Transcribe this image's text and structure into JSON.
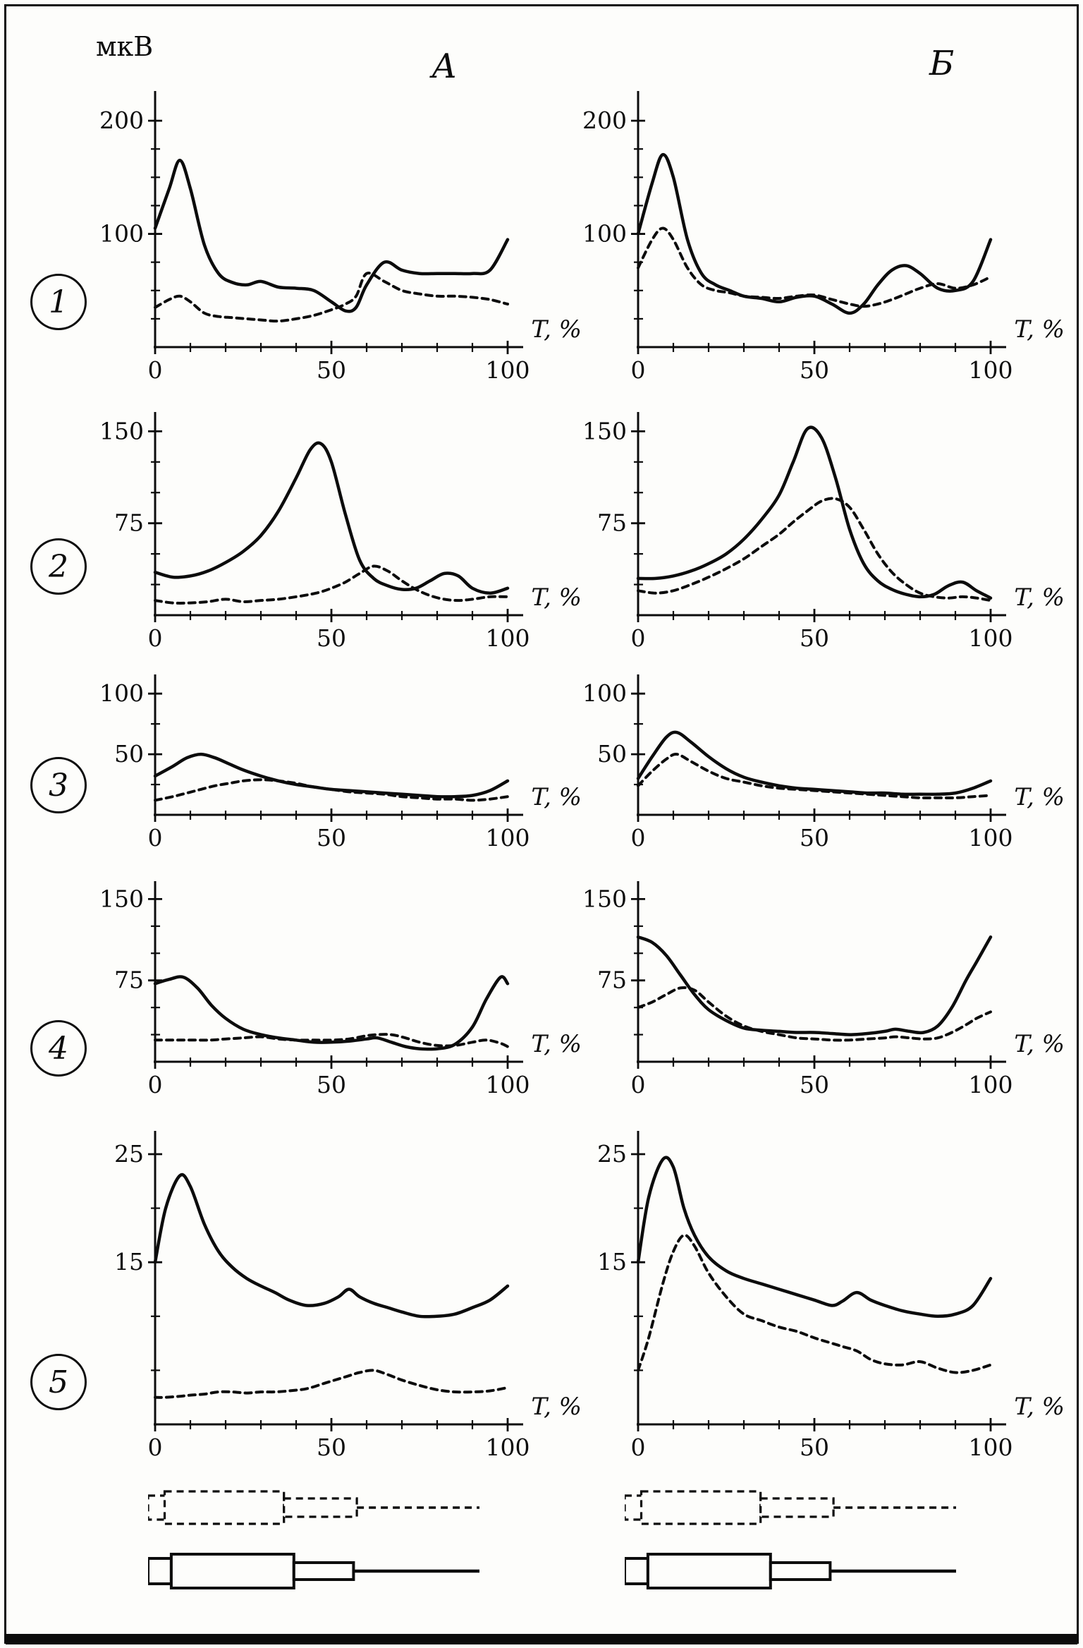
{
  "figure": {
    "y_unit_label": "мкВ",
    "col_a_label": "А",
    "col_b_label": "Б",
    "x_axis_label": "T, %",
    "row_labels": [
      "1",
      "2",
      "3",
      "4",
      "5"
    ]
  },
  "chart_data": {
    "type": "line",
    "title": "",
    "ylabel_unit": "мкВ",
    "xlabel": "T, %",
    "columns": [
      "А",
      "Б"
    ],
    "rows": [
      "1",
      "2",
      "3",
      "4",
      "5"
    ],
    "series_styles": [
      "solid",
      "dashed"
    ],
    "legend_position": "none",
    "grid": false,
    "charts": [
      {
        "id": "r1a",
        "row": 1,
        "col": "А",
        "ylim": [
          0,
          220
        ],
        "yticks": [
          100,
          200
        ],
        "yminor": [
          25,
          50,
          75,
          125,
          150,
          175
        ],
        "xticks": [
          0,
          50,
          100
        ],
        "xminor": [
          10,
          20,
          30,
          40,
          60,
          70,
          80,
          90
        ],
        "x": [
          0,
          4,
          7,
          10,
          14,
          18,
          22,
          26,
          30,
          35,
          40,
          45,
          50,
          54,
          57,
          60,
          65,
          70,
          75,
          80,
          85,
          90,
          95,
          100
        ],
        "solid": [
          105,
          140,
          165,
          140,
          90,
          65,
          57,
          55,
          58,
          53,
          52,
          50,
          40,
          32,
          35,
          55,
          75,
          68,
          65,
          65,
          65,
          65,
          68,
          95
        ],
        "dashed": [
          35,
          42,
          45,
          40,
          30,
          27,
          26,
          25,
          24,
          23,
          25,
          28,
          33,
          38,
          45,
          65,
          58,
          50,
          47,
          45,
          45,
          44,
          42,
          38
        ]
      },
      {
        "id": "r1b",
        "row": 1,
        "col": "Б",
        "ylim": [
          0,
          220
        ],
        "yticks": [
          100,
          200
        ],
        "yminor": [
          25,
          50,
          75,
          125,
          150,
          175
        ],
        "xticks": [
          0,
          50,
          100
        ],
        "xminor": [
          10,
          20,
          30,
          40,
          60,
          70,
          80,
          90
        ],
        "x": [
          0,
          4,
          7,
          10,
          14,
          18,
          22,
          26,
          30,
          35,
          40,
          45,
          50,
          55,
          60,
          64,
          68,
          72,
          76,
          80,
          85,
          90,
          95,
          100
        ],
        "solid": [
          100,
          145,
          170,
          150,
          95,
          65,
          55,
          50,
          45,
          43,
          40,
          44,
          45,
          38,
          30,
          38,
          55,
          68,
          72,
          65,
          52,
          50,
          58,
          95
        ],
        "dashed": [
          70,
          95,
          105,
          95,
          70,
          55,
          50,
          48,
          45,
          44,
          43,
          45,
          46,
          42,
          38,
          36,
          38,
          42,
          47,
          52,
          56,
          52,
          55,
          62
        ]
      },
      {
        "id": "r2a",
        "row": 2,
        "col": "А",
        "ylim": [
          0,
          160
        ],
        "yticks": [
          75,
          150
        ],
        "yminor": [
          25,
          50,
          100,
          125
        ],
        "xticks": [
          0,
          50,
          100
        ],
        "xminor": [
          10,
          20,
          30,
          40,
          60,
          70,
          80,
          90
        ],
        "x": [
          0,
          5,
          10,
          15,
          20,
          25,
          30,
          35,
          40,
          44,
          47,
          50,
          54,
          58,
          62,
          66,
          70,
          74,
          78,
          82,
          86,
          90,
          95,
          100
        ],
        "solid": [
          35,
          31,
          32,
          36,
          43,
          52,
          65,
          85,
          112,
          135,
          140,
          125,
          82,
          45,
          30,
          24,
          21,
          22,
          28,
          34,
          32,
          22,
          18,
          22
        ],
        "dashed": [
          12,
          10,
          10,
          11,
          13,
          11,
          12,
          13,
          15,
          17,
          19,
          22,
          27,
          34,
          40,
          36,
          28,
          21,
          16,
          13,
          12,
          13,
          15,
          15
        ]
      },
      {
        "id": "r2b",
        "row": 2,
        "col": "Б",
        "ylim": [
          0,
          160
        ],
        "yticks": [
          75,
          150
        ],
        "yminor": [
          25,
          50,
          100,
          125
        ],
        "xticks": [
          0,
          50,
          100
        ],
        "xminor": [
          10,
          20,
          30,
          40,
          60,
          70,
          80,
          90
        ],
        "x": [
          0,
          5,
          10,
          15,
          20,
          25,
          30,
          35,
          40,
          44,
          48,
          52,
          56,
          60,
          64,
          68,
          72,
          76,
          80,
          84,
          88,
          92,
          96,
          100
        ],
        "solid": [
          30,
          30,
          32,
          36,
          42,
          50,
          62,
          78,
          98,
          125,
          152,
          145,
          112,
          70,
          42,
          28,
          21,
          17,
          15,
          17,
          24,
          27,
          20,
          14
        ],
        "dashed": [
          20,
          18,
          20,
          25,
          31,
          38,
          46,
          56,
          66,
          76,
          85,
          93,
          95,
          88,
          70,
          50,
          35,
          25,
          18,
          15,
          14,
          15,
          14,
          12
        ]
      },
      {
        "id": "r3a",
        "row": 3,
        "col": "А",
        "ylim": [
          0,
          110
        ],
        "yticks": [
          50,
          100
        ],
        "yminor": [
          25,
          75
        ],
        "xticks": [
          0,
          50,
          100
        ],
        "xminor": [
          10,
          20,
          30,
          40,
          60,
          70,
          80,
          90
        ],
        "x": [
          0,
          5,
          9,
          13,
          17,
          21,
          25,
          30,
          35,
          40,
          45,
          50,
          55,
          60,
          65,
          70,
          75,
          80,
          85,
          90,
          95,
          100
        ],
        "solid": [
          32,
          40,
          47,
          50,
          47,
          42,
          37,
          32,
          28,
          25,
          23,
          21,
          20,
          19,
          18,
          17,
          16,
          15,
          15,
          16,
          20,
          28
        ],
        "dashed": [
          12,
          15,
          18,
          21,
          24,
          26,
          28,
          29,
          28,
          26,
          23,
          21,
          19,
          18,
          17,
          15,
          14,
          13,
          13,
          12,
          13,
          15
        ]
      },
      {
        "id": "r3b",
        "row": 3,
        "col": "Б",
        "ylim": [
          0,
          110
        ],
        "yticks": [
          50,
          100
        ],
        "yminor": [
          25,
          75
        ],
        "xticks": [
          0,
          50,
          100
        ],
        "xminor": [
          10,
          20,
          30,
          40,
          60,
          70,
          80,
          90
        ],
        "x": [
          0,
          4,
          8,
          11,
          15,
          20,
          25,
          30,
          35,
          40,
          45,
          50,
          55,
          60,
          65,
          70,
          75,
          80,
          85,
          90,
          95,
          100
        ],
        "solid": [
          30,
          48,
          64,
          68,
          60,
          48,
          38,
          31,
          27,
          24,
          22,
          21,
          20,
          19,
          18,
          18,
          17,
          17,
          17,
          18,
          22,
          28
        ],
        "dashed": [
          24,
          36,
          46,
          50,
          44,
          36,
          30,
          27,
          24,
          22,
          21,
          20,
          19,
          18,
          17,
          16,
          15,
          14,
          14,
          14,
          15,
          16
        ]
      },
      {
        "id": "r4a",
        "row": 4,
        "col": "А",
        "ylim": [
          0,
          160
        ],
        "yticks": [
          75,
          150
        ],
        "yminor": [
          25,
          50,
          100,
          125
        ],
        "xticks": [
          0,
          50,
          100
        ],
        "xminor": [
          10,
          20,
          30,
          40,
          60,
          70,
          80,
          90
        ],
        "x": [
          0,
          4,
          8,
          12,
          16,
          20,
          25,
          30,
          35,
          40,
          45,
          50,
          55,
          60,
          63,
          67,
          71,
          75,
          80,
          85,
          90,
          94,
          98,
          100
        ],
        "solid": [
          72,
          76,
          78,
          68,
          52,
          40,
          30,
          25,
          22,
          20,
          18,
          18,
          19,
          21,
          22,
          18,
          14,
          12,
          12,
          16,
          32,
          58,
          78,
          72
        ],
        "dashed": [
          20,
          20,
          20,
          20,
          20,
          21,
          22,
          23,
          21,
          20,
          20,
          20,
          21,
          24,
          25,
          25,
          22,
          18,
          15,
          15,
          18,
          20,
          17,
          14
        ]
      },
      {
        "id": "r4b",
        "row": 4,
        "col": "Б",
        "ylim": [
          0,
          160
        ],
        "yticks": [
          75,
          150
        ],
        "yminor": [
          25,
          50,
          100,
          125
        ],
        "xticks": [
          0,
          50,
          100
        ],
        "xminor": [
          10,
          20,
          30,
          40,
          60,
          70,
          80,
          90
        ],
        "x": [
          0,
          4,
          8,
          12,
          16,
          20,
          25,
          30,
          35,
          40,
          45,
          50,
          55,
          60,
          65,
          70,
          73,
          77,
          81,
          85,
          89,
          93,
          96,
          100
        ],
        "solid": [
          115,
          110,
          98,
          80,
          62,
          48,
          38,
          31,
          29,
          28,
          27,
          27,
          26,
          25,
          26,
          28,
          30,
          28,
          27,
          33,
          50,
          75,
          92,
          115
        ],
        "dashed": [
          50,
          55,
          62,
          68,
          66,
          55,
          42,
          33,
          28,
          25,
          22,
          21,
          20,
          20,
          21,
          22,
          23,
          22,
          21,
          22,
          27,
          34,
          40,
          46
        ]
      },
      {
        "id": "r5a",
        "row": 5,
        "col": "А",
        "ylim": [
          0,
          26.5
        ],
        "yticks": [
          15,
          25
        ],
        "yminor": [
          5,
          10,
          20
        ],
        "xticks": [
          0,
          50,
          100
        ],
        "xminor": [
          10,
          20,
          30,
          40,
          60,
          70,
          80,
          90
        ],
        "x": [
          0,
          3,
          7,
          10,
          14,
          18,
          22,
          26,
          30,
          34,
          38,
          43,
          48,
          52,
          55,
          58,
          62,
          66,
          70,
          75,
          80,
          85,
          90,
          95,
          100
        ],
        "solid": [
          15,
          20,
          23,
          22,
          18.5,
          16,
          14.5,
          13.5,
          12.8,
          12.2,
          11.5,
          11,
          11.2,
          11.8,
          12.5,
          11.8,
          11.2,
          10.8,
          10.4,
          10,
          10,
          10.2,
          10.8,
          11.5,
          12.8
        ],
        "dashed": [
          2.5,
          2.5,
          2.6,
          2.7,
          2.8,
          3,
          3,
          2.9,
          3,
          3,
          3.1,
          3.3,
          3.8,
          4.2,
          4.5,
          4.8,
          5,
          4.6,
          4.1,
          3.6,
          3.2,
          3,
          3,
          3.1,
          3.4
        ]
      },
      {
        "id": "r5b",
        "row": 5,
        "col": "Б",
        "ylim": [
          0,
          26.5
        ],
        "yticks": [
          15,
          25
        ],
        "yminor": [
          5,
          10,
          20
        ],
        "xticks": [
          0,
          50,
          100
        ],
        "xminor": [
          10,
          20,
          30,
          40,
          60,
          70,
          80,
          90
        ],
        "x": [
          0,
          3,
          7,
          10,
          13,
          16,
          20,
          25,
          30,
          35,
          40,
          45,
          50,
          55,
          58,
          62,
          66,
          70,
          75,
          80,
          85,
          90,
          95,
          100
        ],
        "solid": [
          15,
          21,
          24.5,
          23.8,
          20,
          17.5,
          15.5,
          14.2,
          13.5,
          13,
          12.5,
          12,
          11.5,
          11,
          11.4,
          12.2,
          11.5,
          11,
          10.5,
          10.2,
          10,
          10.2,
          11,
          13.5
        ],
        "dashed": [
          5,
          8,
          13,
          16,
          17.5,
          16.5,
          14,
          11.8,
          10.2,
          9.6,
          9,
          8.6,
          8,
          7.5,
          7.2,
          6.8,
          6,
          5.6,
          5.5,
          5.8,
          5.2,
          4.8,
          5,
          5.5
        ]
      }
    ],
    "schematics": {
      "dashed": {
        "style": "dashed",
        "segments": [
          {
            "type": "rect",
            "x0": 0,
            "x1": 6,
            "h": 34
          },
          {
            "type": "rect",
            "x0": 5,
            "x1": 41,
            "h": 46
          },
          {
            "type": "rect",
            "x0": 41,
            "x1": 63,
            "h": 26
          },
          {
            "type": "line",
            "x0": 63,
            "x1": 100
          }
        ]
      },
      "solid": {
        "style": "solid",
        "segments": [
          {
            "type": "rect",
            "x0": 0,
            "x1": 7,
            "h": 36
          },
          {
            "type": "rect",
            "x0": 7,
            "x1": 44,
            "h": 48
          },
          {
            "type": "rect",
            "x0": 44,
            "x1": 62,
            "h": 24
          },
          {
            "type": "line",
            "x0": 62,
            "x1": 100
          }
        ]
      }
    },
    "colors": {
      "ink": "#0c0c0c",
      "paper": "#fdfdfb"
    }
  }
}
